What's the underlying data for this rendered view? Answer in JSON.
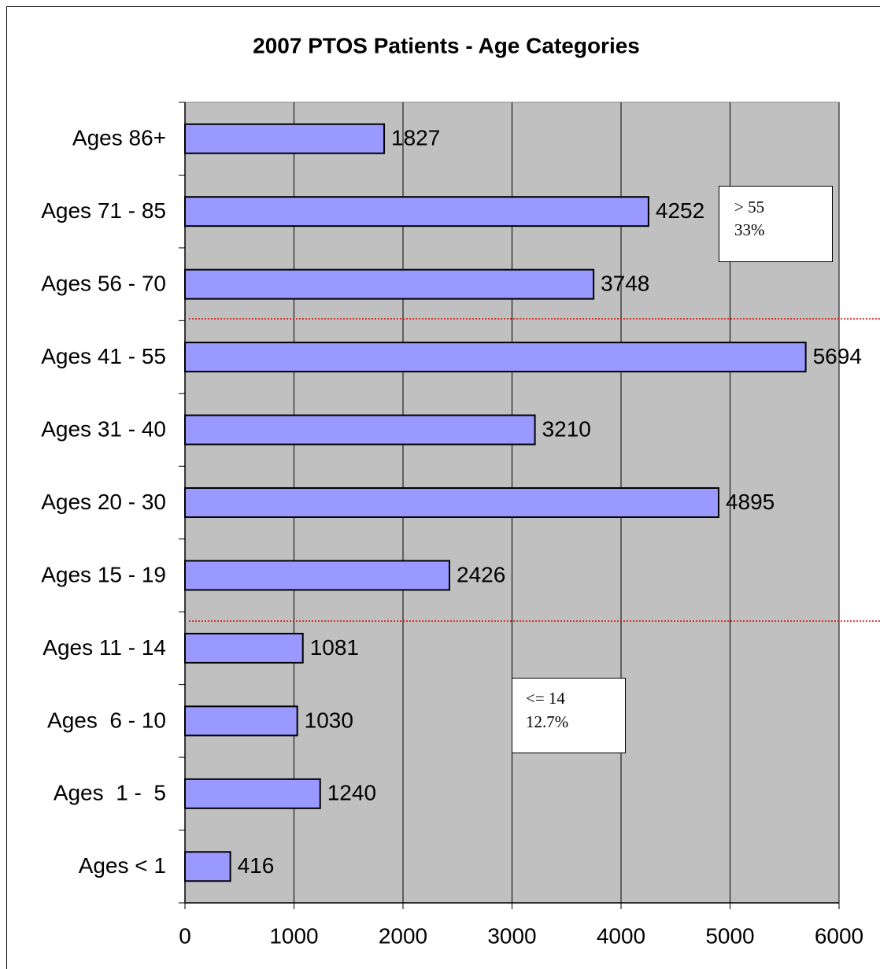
{
  "chart_data": {
    "type": "bar",
    "orientation": "horizontal",
    "title": "2007 PTOS Patients - Age Categories",
    "categories": [
      "Ages 86+",
      "Ages 71 - 85",
      "Ages 56 - 70",
      "Ages 41 - 55",
      "Ages 31 - 40",
      "Ages 20 - 30",
      "Ages 15 - 19",
      "Ages 11 - 14",
      "Ages  6 - 10",
      "Ages  1 -  5",
      "Ages < 1"
    ],
    "values": [
      1827,
      4252,
      3748,
      5694,
      3210,
      4895,
      2426,
      1081,
      1030,
      1240,
      416
    ],
    "color": "#9999ff",
    "xlim": [
      0,
      6000
    ],
    "xticks": [
      0,
      1000,
      2000,
      3000,
      4000,
      5000,
      6000
    ],
    "grid": true,
    "annotations": [
      [
        "> 55",
        "33%"
      ],
      [
        "<= 14",
        "12.7%"
      ]
    ]
  }
}
